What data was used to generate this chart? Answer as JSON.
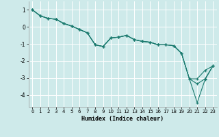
{
  "xlabel": "Humidex (Indice chaleur)",
  "background_color": "#ceeaea",
  "grid_color": "#ffffff",
  "line_color": "#1a7a6e",
  "xlim": [
    -0.5,
    23.5
  ],
  "ylim": [
    -4.7,
    1.5
  ],
  "yticks": [
    -4,
    -3,
    -2,
    -1,
    0,
    1
  ],
  "xticks": [
    0,
    1,
    2,
    3,
    4,
    5,
    6,
    7,
    8,
    9,
    10,
    11,
    12,
    13,
    14,
    15,
    16,
    17,
    18,
    19,
    20,
    21,
    22,
    23
  ],
  "series": [
    [
      1.0,
      0.65,
      0.5,
      0.45,
      0.2,
      0.05,
      -0.15,
      -0.35,
      -1.05,
      -1.15,
      -0.65,
      -0.6,
      -0.5,
      -0.75,
      -0.85,
      -0.9,
      -1.05,
      -1.05,
      -1.1,
      -1.55,
      -3.05,
      -4.45,
      -3.1,
      -2.3
    ],
    [
      1.0,
      0.65,
      0.5,
      0.45,
      0.2,
      0.05,
      -0.15,
      -0.35,
      -1.05,
      -1.15,
      -0.65,
      -0.6,
      -0.5,
      -0.75,
      -0.85,
      -0.9,
      -1.05,
      -1.05,
      -1.1,
      -1.55,
      -3.05,
      -3.35,
      -3.05,
      -2.3
    ],
    [
      1.0,
      0.65,
      0.5,
      0.45,
      0.2,
      0.05,
      -0.15,
      -0.35,
      -1.05,
      -1.15,
      -0.65,
      -0.6,
      -0.5,
      -0.75,
      -0.85,
      -0.9,
      -1.05,
      -1.05,
      -1.1,
      -1.55,
      -3.05,
      -3.05,
      -2.55,
      -2.3
    ]
  ]
}
